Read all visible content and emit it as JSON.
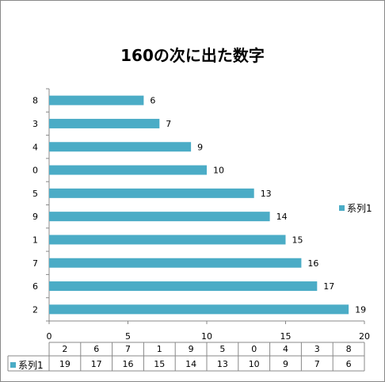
{
  "chart_data": {
    "type": "bar",
    "orientation": "horizontal",
    "title": "160の次に出た数字",
    "categories": [
      "8",
      "3",
      "4",
      "0",
      "5",
      "9",
      "1",
      "7",
      "6",
      "2"
    ],
    "series": [
      {
        "name": "系列1",
        "values": [
          6,
          7,
          9,
          10,
          13,
          14,
          15,
          16,
          17,
          19
        ],
        "color": "#4BACC6"
      }
    ],
    "x_ticks": [
      "0",
      "5",
      "10",
      "15",
      "20"
    ],
    "xlim": [
      0,
      20
    ],
    "legend_position": "right",
    "data_table": {
      "header": [
        "2",
        "6",
        "7",
        "1",
        "9",
        "5",
        "0",
        "4",
        "3",
        "8"
      ],
      "row_label": "系列1",
      "row_values": [
        "19",
        "17",
        "16",
        "15",
        "14",
        "13",
        "10",
        "9",
        "7",
        "6"
      ]
    },
    "grid": false
  }
}
